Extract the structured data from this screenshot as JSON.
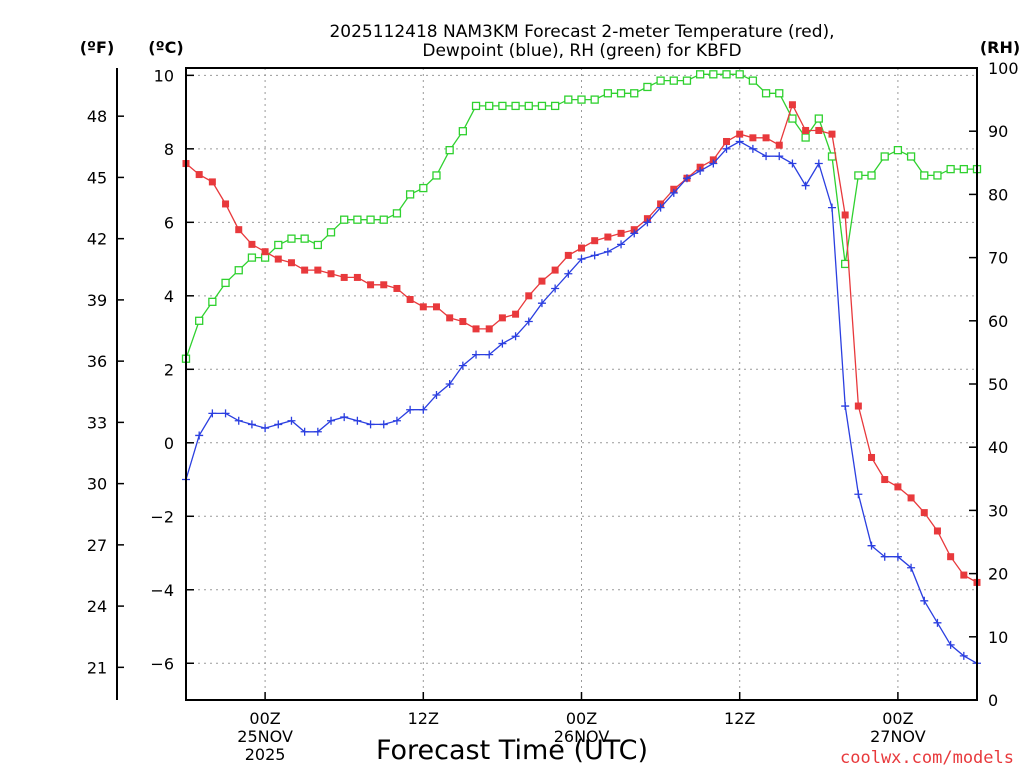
{
  "chart_data": {
    "type": "line",
    "title_line1": "2025112418 NAM3KM Forecast 2-meter Temperature (red),",
    "title_line2": "Dewpoint (blue), RH (green) for KBFD",
    "xlabel": "Forecast Time (UTC)",
    "credit": "coolwx.com/models",
    "unit_f": "(ºF)",
    "unit_c": "(ºC)",
    "unit_rh": "(RH)",
    "x_unit": "forecast hours from 2025-11-24 18Z",
    "xlim": [
      0,
      60
    ],
    "ylim_c": [
      -7,
      10.2
    ],
    "ylim_rh": [
      0,
      100
    ],
    "x_ticks": [
      {
        "hour": 6,
        "lines": [
          "00Z",
          "25NOV",
          "2025"
        ]
      },
      {
        "hour": 18,
        "lines": [
          "12Z"
        ]
      },
      {
        "hour": 30,
        "lines": [
          "00Z",
          "26NOV"
        ]
      },
      {
        "hour": 42,
        "lines": [
          "12Z"
        ]
      },
      {
        "hour": 54,
        "lines": [
          "00Z",
          "27NOV"
        ]
      }
    ],
    "y_ticks_c": [
      -6,
      -4,
      -2,
      0,
      2,
      4,
      6,
      8,
      10
    ],
    "y_ticks_f": [
      21,
      24,
      27,
      30,
      33,
      36,
      39,
      42,
      45,
      48
    ],
    "y_ticks_rh": [
      0,
      10,
      20,
      30,
      40,
      50,
      60,
      70,
      80,
      90,
      100
    ],
    "colors": {
      "temp": "#e8393c",
      "dewpoint": "#2b3fe0",
      "rh": "#2fd12f",
      "grid": "#9a9a9a"
    },
    "series": [
      {
        "name": "Temperature",
        "unit": "C",
        "marker": "filled-square",
        "values": [
          7.6,
          7.3,
          7.1,
          6.5,
          5.8,
          5.4,
          5.2,
          5.0,
          4.9,
          4.7,
          4.7,
          4.6,
          4.5,
          4.5,
          4.3,
          4.3,
          4.2,
          3.9,
          3.7,
          3.7,
          3.4,
          3.3,
          3.1,
          3.1,
          3.4,
          3.5,
          4.0,
          4.4,
          4.7,
          5.1,
          5.3,
          5.5,
          5.6,
          5.7,
          5.8,
          6.1,
          6.5,
          6.9,
          7.2,
          7.5,
          7.7,
          8.2,
          8.4,
          8.3,
          8.3,
          8.1,
          9.2,
          8.5,
          8.5,
          8.4,
          6.2,
          1.0,
          -0.4,
          -1.0,
          -1.2,
          -1.5,
          -1.9,
          -2.4,
          -3.1,
          -3.6,
          -3.8
        ]
      },
      {
        "name": "Dewpoint",
        "unit": "C",
        "marker": "plus",
        "values": [
          -1.0,
          0.2,
          0.8,
          0.8,
          0.6,
          0.5,
          0.4,
          0.5,
          0.6,
          0.3,
          0.3,
          0.6,
          0.7,
          0.6,
          0.5,
          0.5,
          0.6,
          0.9,
          0.9,
          1.3,
          1.6,
          2.1,
          2.4,
          2.4,
          2.7,
          2.9,
          3.3,
          3.8,
          4.2,
          4.6,
          5.0,
          5.1,
          5.2,
          5.4,
          5.7,
          6.0,
          6.4,
          6.8,
          7.2,
          7.4,
          7.6,
          8.0,
          8.2,
          8.0,
          7.8,
          7.8,
          7.6,
          7.0,
          7.6,
          6.4,
          1.0,
          -1.4,
          -2.8,
          -3.1,
          -3.1,
          -3.4,
          -4.3,
          -4.9,
          -5.5,
          -5.8,
          -6.0
        ]
      },
      {
        "name": "RH",
        "unit": "%",
        "marker": "open-square",
        "values": [
          54,
          60,
          63,
          66,
          68,
          70,
          70,
          72,
          73,
          73,
          72,
          74,
          76,
          76,
          76,
          76,
          77,
          80,
          81,
          83,
          87,
          90,
          94,
          94,
          94,
          94,
          94,
          94,
          94,
          95,
          95,
          95,
          96,
          96,
          96,
          97,
          98,
          98,
          98,
          99,
          99,
          99,
          99,
          98,
          96,
          96,
          92,
          89,
          92,
          86,
          69,
          83,
          83,
          86,
          87,
          86,
          83,
          83,
          84,
          84,
          84
        ]
      }
    ]
  }
}
